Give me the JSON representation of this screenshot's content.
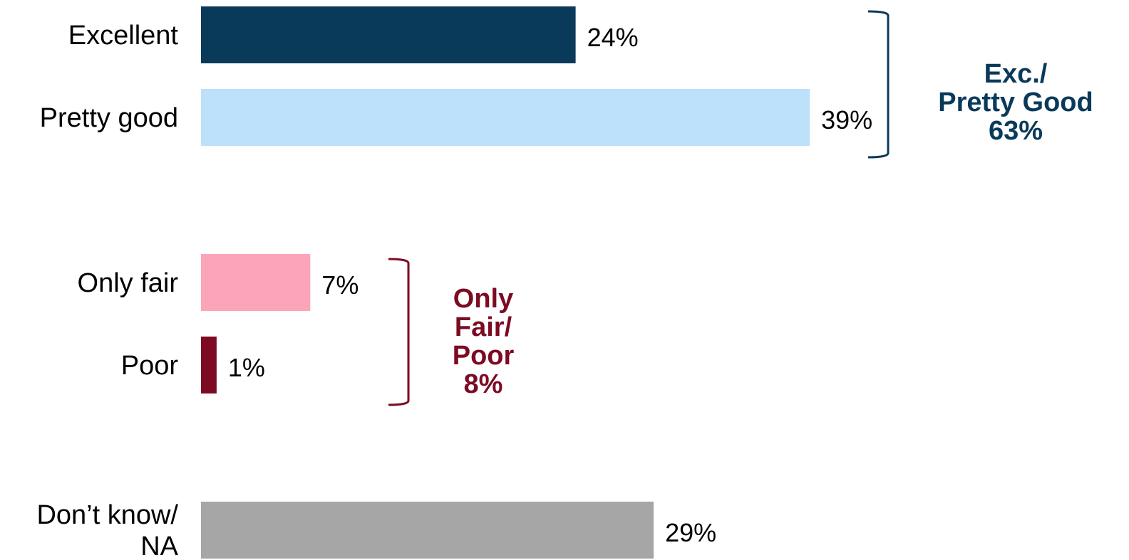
{
  "chart_data": {
    "type": "bar",
    "orientation": "horizontal",
    "categories": [
      "Excellent",
      "Pretty good",
      "Only fair",
      "Poor",
      "Don’t know/ NA"
    ],
    "category_lines": [
      [
        "Excellent"
      ],
      [
        "Pretty good"
      ],
      [
        "Only fair"
      ],
      [
        "Poor"
      ],
      [
        "Don’t know/",
        "NA"
      ]
    ],
    "values": [
      24,
      39,
      7,
      1,
      29
    ],
    "value_labels": [
      "24%",
      "39%",
      "7%",
      "1%",
      "29%"
    ],
    "bar_colors": [
      "#0a3a5a",
      "#bde0fb",
      "#fca5ba",
      "#7d0a23",
      "#a6a6a6"
    ],
    "title": "",
    "xlabel": "",
    "ylabel": "",
    "grid": false,
    "groups": [
      {
        "categories": [
          "Excellent",
          "Pretty good"
        ],
        "label_lines": [
          "Exc./",
          "Pretty Good",
          "63%"
        ],
        "value": 63,
        "color": "#0a3a5a"
      },
      {
        "categories": [
          "Only fair",
          "Poor"
        ],
        "label_lines": [
          "Only",
          "Fair/",
          "Poor",
          "8%"
        ],
        "value": 8,
        "color": "#7d0a23"
      }
    ]
  }
}
